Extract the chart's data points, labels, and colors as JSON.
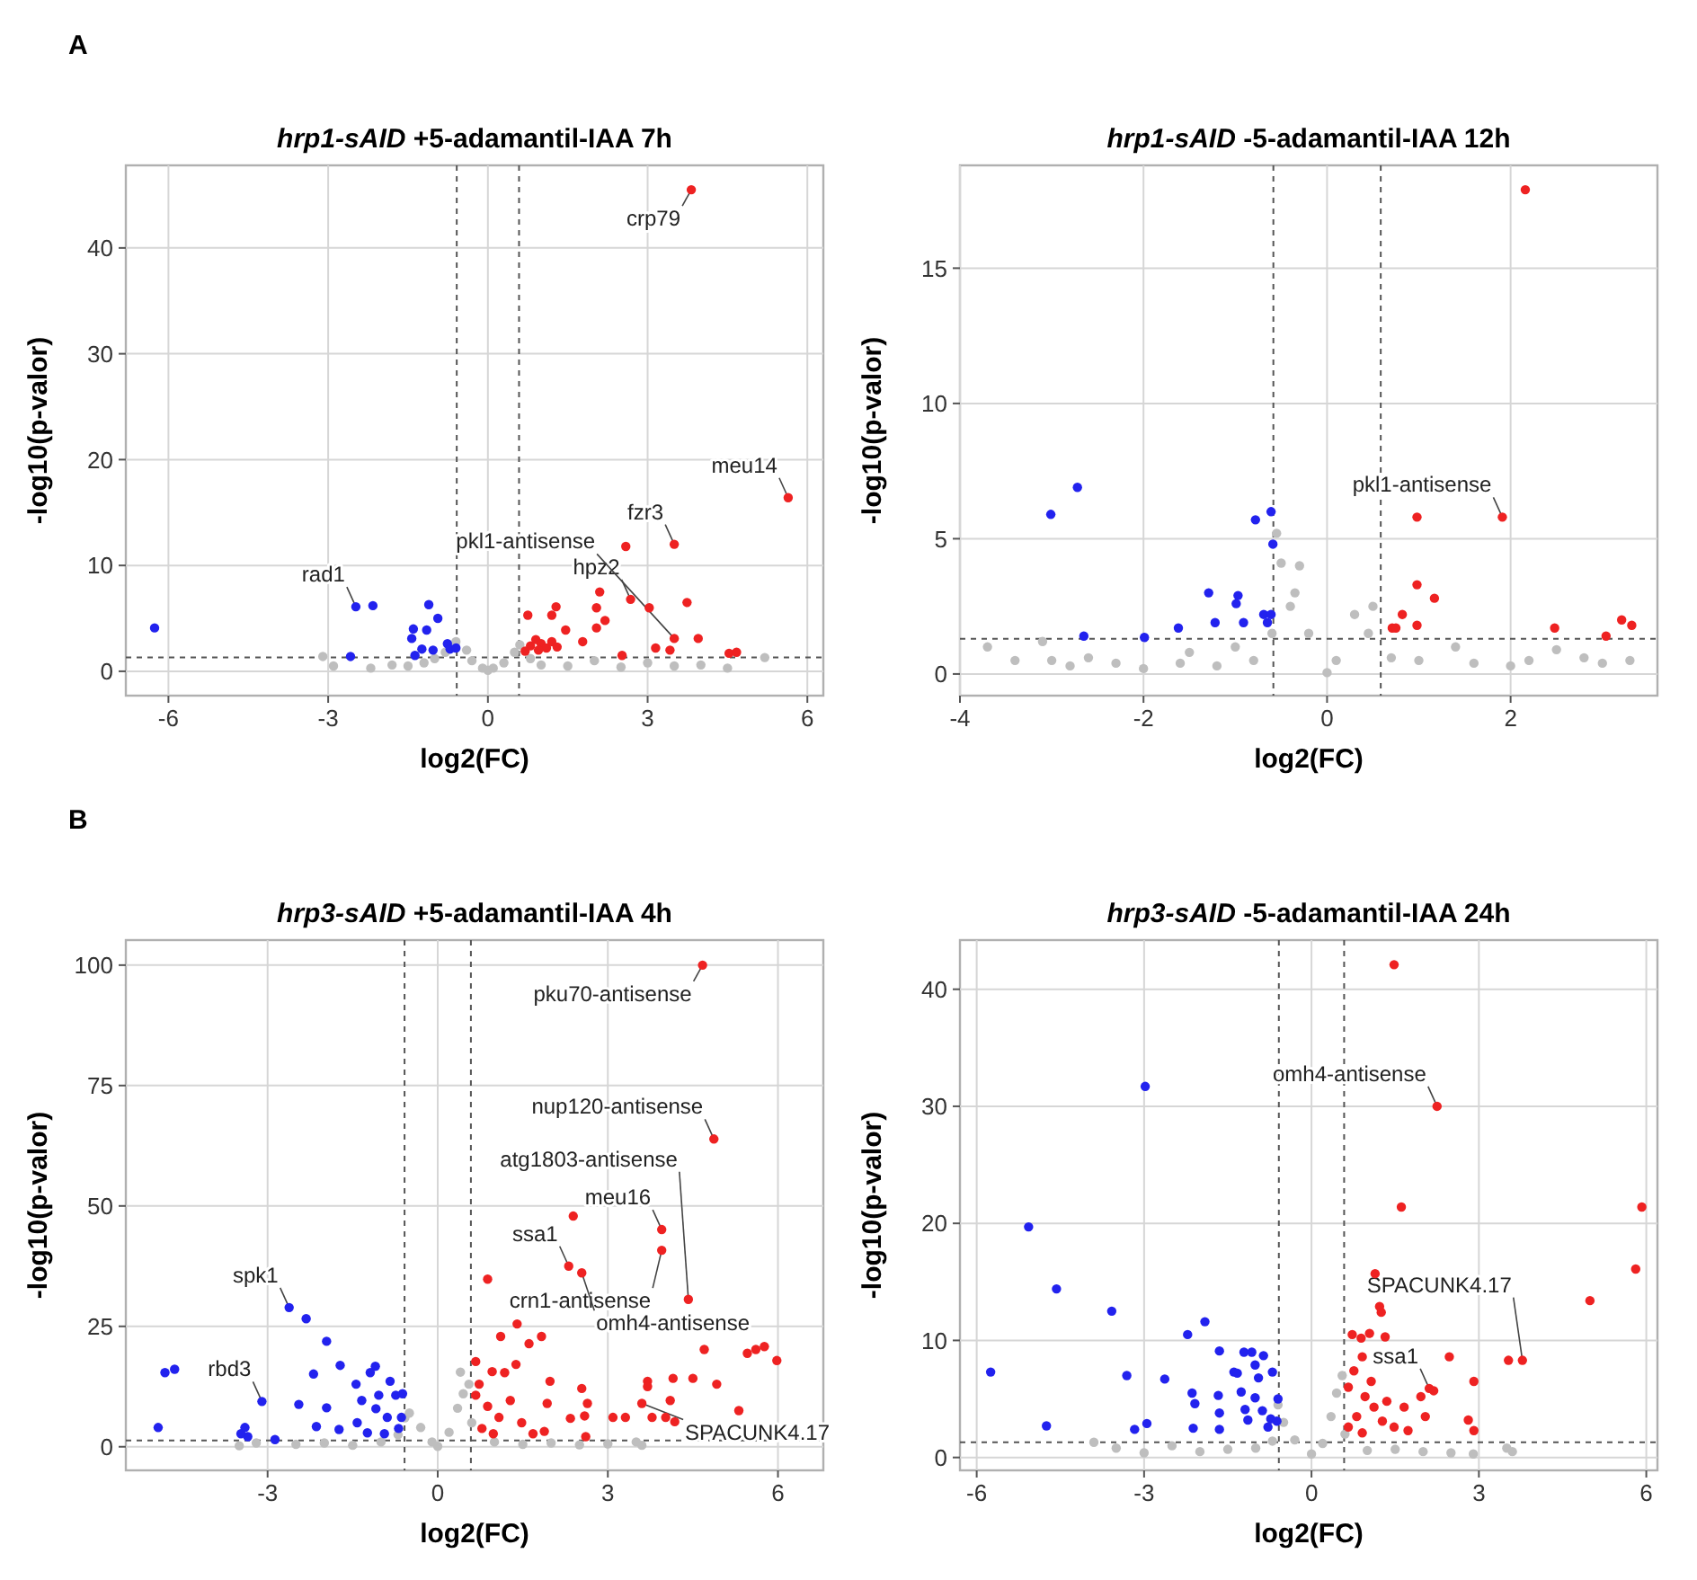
{
  "chart_data": [
    {
      "type": "scatter",
      "title": "hrp1-sAID +5-adamantil-IAA 7h",
      "xlabel": "log2(FC)",
      "ylabel": "-log10(p-valor)",
      "xlim": [
        -6.8,
        6.3
      ],
      "ylim": [
        -2.3,
        47.8
      ],
      "xticks": [
        -6,
        -3,
        0,
        3,
        6
      ],
      "yticks": [
        0,
        10,
        20,
        30,
        40
      ],
      "grid": true,
      "marker": "circle",
      "ref_lines": [
        {
          "axis": "x",
          "value": -0.585,
          "line_style": "dashed"
        },
        {
          "axis": "x",
          "value": 0.585,
          "line_style": "dashed"
        },
        {
          "axis": "y",
          "value": 1.3,
          "line_style": "dashed"
        }
      ],
      "annotations": [
        "A",
        {
          "text": "crp79",
          "x": 3.82,
          "y": 45.5
        },
        {
          "text": "meu14",
          "x": 5.64,
          "y": 16.4
        },
        {
          "text": "fzr3",
          "x": 3.5,
          "y": 12
        },
        {
          "text": "hpz2",
          "x": 2.68,
          "y": 6.8
        },
        {
          "text": "pkl1-antisense",
          "x": 3.5,
          "y": 3.1
        },
        {
          "text": "rad1",
          "x": -2.48,
          "y": 6.1
        }
      ],
      "series": [
        {
          "color": "#bebebe",
          "x": [
            -3.1,
            -2.9,
            -2.2,
            -1.8,
            -1.5,
            -1.2,
            -1,
            -0.8,
            -0.6,
            -0.4,
            -0.3,
            -0.1,
            0,
            0.1,
            0.3,
            0.5,
            0.6,
            0.8,
            1,
            1.5,
            2,
            2.5,
            3,
            3.5,
            4,
            4.5,
            5.2
          ],
          "values": [
            1.4,
            0.5,
            0.3,
            0.6,
            0.5,
            0.8,
            1.2,
            1.8,
            2.8,
            2,
            1,
            0.3,
            0.1,
            0.3,
            0.8,
            1.8,
            2.5,
            1.2,
            0.6,
            0.5,
            1,
            0.4,
            0.8,
            0.5,
            0.6,
            0.3,
            1.3
          ]
        },
        {
          "color": "#2222ee",
          "x": [
            -6.26,
            -2.48,
            -2.16,
            -2.58,
            -1.11,
            -0.94,
            -1.4,
            -1.15,
            -1.43,
            -1.24,
            -1.37,
            -1.03,
            -0.76,
            -0.71,
            -0.6
          ],
          "values": [
            4.1,
            6.1,
            6.2,
            1.4,
            6.3,
            5,
            4,
            3.9,
            3.1,
            2.1,
            1.5,
            2,
            2.6,
            2.1,
            2.2
          ]
        },
        {
          "color": "#ee2222",
          "x": [
            3.82,
            5.64,
            3.5,
            2.59,
            2.68,
            2.1,
            3.74,
            3.03,
            3.5,
            3.95,
            2.04,
            2.2,
            2.04,
            1.28,
            1.2,
            1.46,
            0.75,
            1.78,
            3.15,
            3.42,
            4.53,
            4.67,
            2.52,
            0.8,
            0.9,
            1,
            1.1,
            1.2,
            1.3,
            0.7,
            0.95
          ],
          "values": [
            45.5,
            16.4,
            12,
            11.8,
            6.8,
            7.5,
            6.5,
            6,
            3.1,
            3.1,
            6,
            4.8,
            4.1,
            6.1,
            5.3,
            3.9,
            5.3,
            2.8,
            2.2,
            2,
            1.7,
            1.8,
            1.5,
            2.4,
            3,
            2.6,
            2.2,
            2.8,
            2.3,
            1.9,
            2
          ]
        }
      ]
    },
    {
      "type": "scatter",
      "title": "hrp1-sAID -5-adamantil-IAA 12h",
      "xlabel": "log2(FC)",
      "ylabel": "-log10(p-valor)",
      "xlim": [
        -4,
        3.6
      ],
      "ylim": [
        -0.8,
        18.8
      ],
      "xticks": [
        -4,
        -2,
        0,
        2
      ],
      "yticks": [
        0,
        5,
        10,
        15
      ],
      "grid": true,
      "marker": "circle",
      "ref_lines": [
        {
          "axis": "x",
          "value": -0.585,
          "line_style": "dashed"
        },
        {
          "axis": "x",
          "value": 0.585,
          "line_style": "dashed"
        },
        {
          "axis": "y",
          "value": 1.3,
          "line_style": "dashed"
        }
      ],
      "annotations": [
        {
          "text": "pkl1-antisense",
          "x": 1.91,
          "y": 5.8
        }
      ],
      "series": [
        {
          "color": "#bebebe",
          "x": [
            -3.7,
            -3.4,
            -3.1,
            -3,
            -2.8,
            -2.6,
            -2.3,
            -2,
            -1.6,
            -1.5,
            -1.2,
            -1,
            -0.8,
            -0.6,
            -0.55,
            -0.5,
            -0.3,
            -0.35,
            -0.4,
            -0.2,
            0,
            0.1,
            0.3,
            0.5,
            0.45,
            0.7,
            1,
            1.4,
            1.6,
            2,
            2.2,
            2.5,
            2.8,
            3,
            3.3
          ],
          "values": [
            1,
            0.5,
            1.2,
            0.5,
            0.3,
            0.6,
            0.4,
            0.2,
            0.4,
            0.8,
            0.3,
            1,
            0.5,
            1.5,
            5.2,
            4.1,
            4,
            3,
            2.5,
            1.5,
            0.05,
            0.5,
            2.2,
            2.5,
            1.5,
            0.6,
            0.5,
            1,
            0.4,
            0.3,
            0.5,
            0.9,
            0.6,
            0.4,
            0.5
          ]
        },
        {
          "color": "#2222ee",
          "x": [
            -3.01,
            -2.72,
            -2.65,
            -1.99,
            -1.62,
            -1.29,
            -1.22,
            -0.97,
            -0.99,
            -0.91,
            -0.78,
            -0.61,
            -0.59,
            -0.69,
            -0.65,
            -0.61
          ],
          "values": [
            5.9,
            6.9,
            1.4,
            1.35,
            1.7,
            3,
            1.9,
            2.9,
            2.6,
            1.9,
            5.7,
            6,
            4.8,
            2.2,
            1.9,
            2.2
          ]
        },
        {
          "color": "#ee2222",
          "x": [
            2.16,
            1.91,
            0.98,
            0.98,
            1.17,
            0.82,
            0.71,
            0.75,
            0.98,
            2.48,
            3.04,
            3.21,
            3.32
          ],
          "values": [
            17.9,
            5.8,
            5.8,
            3.3,
            2.8,
            2.2,
            1.7,
            1.7,
            1.8,
            1.7,
            1.4,
            2,
            1.8
          ]
        }
      ]
    },
    {
      "type": "scatter",
      "title": "hrp3-sAID +5-adamantil-IAA 4h",
      "xlabel": "log2(FC)",
      "ylabel": "-log10(p-valor)",
      "xlim": [
        -5.5,
        6.8
      ],
      "ylim": [
        -4.9,
        105.2
      ],
      "xticks": [
        -3,
        0,
        3,
        6
      ],
      "yticks": [
        0,
        25,
        50,
        75,
        100
      ],
      "grid": true,
      "marker": "circle",
      "ref_lines": [
        {
          "axis": "x",
          "value": -0.585,
          "line_style": "dashed"
        },
        {
          "axis": "x",
          "value": 0.585,
          "line_style": "dashed"
        },
        {
          "axis": "y",
          "value": 1.3,
          "line_style": "dashed"
        }
      ],
      "annotations": [
        "B",
        {
          "text": "pku70-antisense",
          "x": 4.67,
          "y": 100
        },
        {
          "text": "nup120-antisense",
          "x": 4.87,
          "y": 63.9
        },
        {
          "text": "meu16",
          "x": 3.95,
          "y": 45.1
        },
        {
          "text": "crn1-antisense",
          "x": 3.95,
          "y": 40.8
        },
        {
          "text": "ssa1",
          "x": 2.31,
          "y": 37.5
        },
        {
          "text": "atg1803-antisense",
          "x": 4.42,
          "y": 30.6
        },
        {
          "text": "omh4-antisense",
          "x": 2.54,
          "y": 36.1
        },
        {
          "text": "SPACUNK4.17",
          "x": 3.6,
          "y": 9
        },
        {
          "text": "spk1",
          "x": -2.62,
          "y": 28.9
        },
        {
          "text": "rbd3",
          "x": -3.1,
          "y": 9.4
        }
      ],
      "series": [
        {
          "color": "#bebebe",
          "x": [
            -3.5,
            -3.2,
            -2.5,
            -2,
            -1.5,
            -1,
            -0.7,
            -0.58,
            -0.5,
            -0.3,
            -0.1,
            0,
            0.2,
            0.35,
            0.45,
            0.55,
            0.4,
            0.6,
            1,
            1.5,
            2,
            2.5,
            3,
            3.5,
            3.6
          ],
          "values": [
            0.2,
            0.8,
            0.5,
            0.8,
            0.3,
            1,
            2.5,
            6,
            7,
            4,
            1,
            0.1,
            3,
            8,
            11,
            13,
            15.5,
            5,
            1,
            0.5,
            0.8,
            0.4,
            0.6,
            1,
            0.3
          ]
        },
        {
          "color": "#2222ee",
          "x": [
            -2.62,
            -2.32,
            -1.96,
            -2.19,
            -1.72,
            -4.81,
            -4.64,
            -3.1,
            -4.93,
            -2.45,
            -1.96,
            -2.14,
            -1.74,
            -3.4,
            -3.35,
            -3.47,
            -2.87,
            -1.1,
            -1.19,
            -1.44,
            -0.84,
            -0.74,
            -0.62,
            -1.34,
            -1.09,
            -0.89,
            -1.42,
            -1.24,
            -0.94,
            -0.69,
            -0.64,
            -1.04
          ],
          "values": [
            28.9,
            26.6,
            21.9,
            15.1,
            16.9,
            15.4,
            16.1,
            9.4,
            4,
            8.8,
            8.1,
            4.2,
            3.6,
            4,
            2.1,
            2.7,
            1.5,
            16.7,
            15.4,
            13,
            13.6,
            10.7,
            11,
            9.6,
            7.9,
            6.1,
            5,
            2.9,
            2.7,
            3.8,
            6.1,
            10.7
          ]
        },
        {
          "color": "#ee2222",
          "x": [
            4.67,
            4.87,
            3.95,
            3.95,
            2.31,
            2.54,
            2.39,
            4.42,
            0.88,
            1.4,
            1.11,
            1.61,
            1.83,
            3.6,
            5.98,
            5.76,
            5.61,
            5.46,
            5.31,
            4.92,
            4.7,
            4.5,
            4.15,
            3.7,
            3.7,
            4.1,
            4.02,
            3.78,
            4.18,
            3.09,
            3.31,
            2.54,
            2.64,
            2.59,
            2.34,
            2.61,
            1.98,
            1.93,
            1.18,
            1.38,
            0.67,
            0.96,
            0.67,
            0.88,
            1.08,
            0.78,
            1.28,
            1.48,
            1.68,
            0.98,
            1.88,
            0.73
          ],
          "values": [
            100,
            63.9,
            45.1,
            40.8,
            37.5,
            36.1,
            47.9,
            30.6,
            34.8,
            25.5,
            22.9,
            21.4,
            22.9,
            9,
            17.9,
            20.8,
            20.2,
            19.4,
            7.5,
            13,
            20.2,
            14.2,
            14.2,
            13.6,
            12.5,
            9.6,
            6.1,
            6.1,
            5.2,
            6.1,
            6.1,
            12.1,
            9,
            6.4,
            5.9,
            2.1,
            13.6,
            9,
            15.4,
            17.1,
            17.7,
            15.6,
            10.7,
            8.4,
            6.1,
            3.8,
            9.6,
            5,
            2.7,
            2.7,
            3.2,
            13
          ]
        }
      ]
    },
    {
      "type": "scatter",
      "title": "hrp3-sAID -5-adamantil-IAA 24h",
      "xlabel": "log2(FC)",
      "ylabel": "-log10(p-valor)",
      "xlim": [
        -6.3,
        6.2
      ],
      "ylim": [
        -1.1,
        44.2
      ],
      "xticks": [
        -6,
        -3,
        0,
        3,
        6
      ],
      "yticks": [
        0,
        10,
        20,
        30,
        40
      ],
      "grid": true,
      "marker": "circle",
      "ref_lines": [
        {
          "axis": "x",
          "value": -0.585,
          "line_style": "dashed"
        },
        {
          "axis": "x",
          "value": 0.585,
          "line_style": "dashed"
        },
        {
          "axis": "y",
          "value": 1.3,
          "line_style": "dashed"
        }
      ],
      "annotations": [
        {
          "text": "omh4-antisense",
          "x": 2.25,
          "y": 30
        },
        {
          "text": "ssa1",
          "x": 2.11,
          "y": 5.9
        },
        {
          "text": "SPACUNK4.17",
          "x": 3.78,
          "y": 8.3
        }
      ],
      "series": [
        {
          "color": "#bebebe",
          "x": [
            -3.9,
            -3.5,
            -3,
            -2.5,
            -2,
            -1.5,
            -1,
            -0.7,
            -0.6,
            -0.5,
            -0.3,
            0,
            0.2,
            0.35,
            0.45,
            0.55,
            0.6,
            1,
            1.5,
            2,
            2.5,
            2.9,
            3.5,
            3.6
          ],
          "values": [
            1.3,
            0.8,
            0.4,
            1,
            0.5,
            0.7,
            0.8,
            1.4,
            4.5,
            3,
            1.5,
            0.3,
            1.2,
            3.5,
            5.5,
            7,
            2,
            0.6,
            0.7,
            0.5,
            0.4,
            0.3,
            0.8,
            0.5
          ]
        },
        {
          "color": "#2222ee",
          "x": [
            -5.07,
            -4.57,
            -2.98,
            -5.75,
            -4.75,
            -3.58,
            -3.31,
            -2.63,
            -2.95,
            -3.17,
            -1.91,
            -2.22,
            -1.65,
            -2.14,
            -2.09,
            -2.12,
            -1.67,
            -1.65,
            -1.65,
            -1.39,
            -1.33,
            -1.21,
            -1.07,
            -0.86,
            -1.01,
            -0.95,
            -0.7,
            -1.26,
            -1.01,
            -1.19,
            -1.14,
            -0.88,
            -0.73,
            -0.6,
            -0.78,
            -0.62
          ],
          "values": [
            19.7,
            14.4,
            31.7,
            7.3,
            2.7,
            12.5,
            7,
            6.7,
            2.9,
            2.4,
            11.6,
            10.5,
            9.1,
            5.5,
            4.6,
            2.5,
            5.3,
            3.8,
            2.4,
            7.3,
            7.2,
            9,
            9,
            8.7,
            7.9,
            6.8,
            7.3,
            5.6,
            5.1,
            4.1,
            3.2,
            4,
            3.3,
            5,
            2.6,
            3.1
          ]
        },
        {
          "color": "#ee2222",
          "x": [
            1.48,
            2.25,
            1.61,
            5.92,
            5.81,
            4.99,
            1.14,
            1.22,
            1.25,
            0.73,
            0.89,
            1.04,
            1.32,
            3.78,
            3.53,
            2.11,
            2.47,
            2.19,
            1.96,
            2.91,
            2.81,
            2.91,
            2.04,
            1.66,
            1.35,
            0.91,
            0.76,
            0.66,
            0.96,
            1.12,
            0.81,
            1.27,
            1.48,
            0.66,
            1.73,
            0.91,
            1.07
          ],
          "values": [
            42.1,
            30,
            21.4,
            21.4,
            16.1,
            13.4,
            15.7,
            12.9,
            12.4,
            10.5,
            10.2,
            10.6,
            10.3,
            8.3,
            8.3,
            5.9,
            8.6,
            5.7,
            5.2,
            6.5,
            3.2,
            2.3,
            3.5,
            4.3,
            4.8,
            8.6,
            7.4,
            6,
            5.2,
            4.3,
            3.5,
            3.1,
            2.6,
            2.6,
            2.3,
            2.1,
            6.5
          ]
        }
      ]
    }
  ]
}
